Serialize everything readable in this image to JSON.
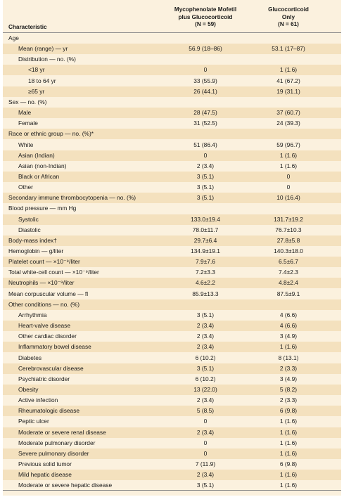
{
  "header": {
    "characteristic": "Characteristic",
    "col1": [
      "Mycophenolate Mofetil",
      "plus Glucocorticoid",
      "(N = 59)"
    ],
    "col2": [
      "Glucocorticoid",
      "Only",
      "(N = 61)"
    ]
  },
  "rows": [
    {
      "label": "Age",
      "indent": 0,
      "v1": "",
      "v2": ""
    },
    {
      "label": "Mean (range) — yr",
      "indent": 1,
      "v1": "56.9 (18–86)",
      "v2": "53.1 (17–87)"
    },
    {
      "label": "Distribution — no. (%)",
      "indent": 1,
      "v1": "",
      "v2": ""
    },
    {
      "label": "<18 yr",
      "indent": 2,
      "v1": "0",
      "v2": "1 (1.6)"
    },
    {
      "label": "18 to 64 yr",
      "indent": 2,
      "v1": "33 (55.9)",
      "v2": "41 (67.2)"
    },
    {
      "label": "≥65 yr",
      "indent": 2,
      "v1": "26 (44.1)",
      "v2": "19 (31.1)"
    },
    {
      "label": "Sex — no. (%)",
      "indent": 0,
      "v1": "",
      "v2": ""
    },
    {
      "label": "Male",
      "indent": 1,
      "v1": "28 (47.5)",
      "v2": "37 (60.7)"
    },
    {
      "label": "Female",
      "indent": 1,
      "v1": "31 (52.5)",
      "v2": "24 (39.3)"
    },
    {
      "label": "Race or ethnic group — no. (%)*",
      "indent": 0,
      "v1": "",
      "v2": ""
    },
    {
      "label": "White",
      "indent": 1,
      "v1": "51 (86.4)",
      "v2": "59 (96.7)"
    },
    {
      "label": "Asian (Indian)",
      "indent": 1,
      "v1": "0",
      "v2": "1 (1.6)"
    },
    {
      "label": "Asian (non-Indian)",
      "indent": 1,
      "v1": "2 (3.4)",
      "v2": "1 (1.6)"
    },
    {
      "label": "Black or African",
      "indent": 1,
      "v1": "3 (5.1)",
      "v2": "0"
    },
    {
      "label": "Other",
      "indent": 1,
      "v1": "3 (5.1)",
      "v2": "0"
    },
    {
      "label": "Secondary immune thrombocytopenia — no. (%)",
      "indent": 0,
      "v1": "3 (5.1)",
      "v2": "10 (16.4)"
    },
    {
      "label": "Blood pressure — mm Hg",
      "indent": 0,
      "v1": "",
      "v2": ""
    },
    {
      "label": "Systolic",
      "indent": 1,
      "v1": "133.0±19.4",
      "v2": "131.7±19.2"
    },
    {
      "label": "Diastolic",
      "indent": 1,
      "v1": "78.0±11.7",
      "v2": "76.7±10.3"
    },
    {
      "label": "Body-mass index†",
      "indent": 0,
      "v1": "29.7±6.4",
      "v2": "27.8±5.8"
    },
    {
      "label": "Hemoglobin — g/liter",
      "indent": 0,
      "v1": "134.9±19.1",
      "v2": "140.3±18.0"
    },
    {
      "label": "Platelet count — ×10⁻⁹/liter",
      "indent": 0,
      "v1": "7.9±7.6",
      "v2": "6.5±6.7"
    },
    {
      "label": "Total white-cell count — ×10⁻⁹/liter",
      "indent": 0,
      "v1": "7.2±3.3",
      "v2": "7.4±2.3"
    },
    {
      "label": "Neutrophils — ×10⁻⁹/liter",
      "indent": 0,
      "v1": "4.6±2.2",
      "v2": "4.8±2.4"
    },
    {
      "label": "Mean corpuscular volume — fl",
      "indent": 0,
      "v1": "85.9±13.3",
      "v2": "87.5±9.1"
    },
    {
      "label": "Other conditions — no. (%)",
      "indent": 0,
      "v1": "",
      "v2": ""
    },
    {
      "label": "Arrhythmia",
      "indent": 1,
      "v1": "3 (5.1)",
      "v2": "4 (6.6)"
    },
    {
      "label": "Heart-valve disease",
      "indent": 1,
      "v1": "2 (3.4)",
      "v2": "4 (6.6)"
    },
    {
      "label": "Other cardiac disorder",
      "indent": 1,
      "v1": "2 (3.4)",
      "v2": "3 (4.9)"
    },
    {
      "label": "Inflammatory bowel disease",
      "indent": 1,
      "v1": "2 (3.4)",
      "v2": "1 (1.6)"
    },
    {
      "label": "Diabetes",
      "indent": 1,
      "v1": "6 (10.2)",
      "v2": "8 (13.1)"
    },
    {
      "label": "Cerebrovascular disease",
      "indent": 1,
      "v1": "3 (5.1)",
      "v2": "2 (3.3)"
    },
    {
      "label": "Psychiatric disorder",
      "indent": 1,
      "v1": "6 (10.2)",
      "v2": "3 (4.9)"
    },
    {
      "label": "Obesity",
      "indent": 1,
      "v1": "13 (22.0)",
      "v2": "5 (8.2)"
    },
    {
      "label": "Active infection",
      "indent": 1,
      "v1": "2 (3.4)",
      "v2": "2 (3.3)"
    },
    {
      "label": "Rheumatologic disease",
      "indent": 1,
      "v1": "5 (8.5)",
      "v2": "6 (9.8)"
    },
    {
      "label": "Peptic ulcer",
      "indent": 1,
      "v1": "0",
      "v2": "1 (1.6)"
    },
    {
      "label": "Moderate or severe renal disease",
      "indent": 1,
      "v1": "2 (3.4)",
      "v2": "1 (1.6)"
    },
    {
      "label": "Moderate pulmonary disorder",
      "indent": 1,
      "v1": "0",
      "v2": "1 (1.6)"
    },
    {
      "label": "Severe pulmonary disorder",
      "indent": 1,
      "v1": "0",
      "v2": "1 (1.6)"
    },
    {
      "label": "Previous solid tumor",
      "indent": 1,
      "v1": "7 (11.9)",
      "v2": "6 (9.8)"
    },
    {
      "label": "Mild hepatic disease",
      "indent": 1,
      "v1": "2 (3.4)",
      "v2": "1 (1.6)"
    },
    {
      "label": "Moderate or severe hepatic disease",
      "indent": 1,
      "v1": "3 (5.1)",
      "v2": "1 (1.6)"
    }
  ],
  "colors": {
    "background": "#fbf1de",
    "shade": "#f4e1be",
    "rule": "#8a8a8a"
  }
}
